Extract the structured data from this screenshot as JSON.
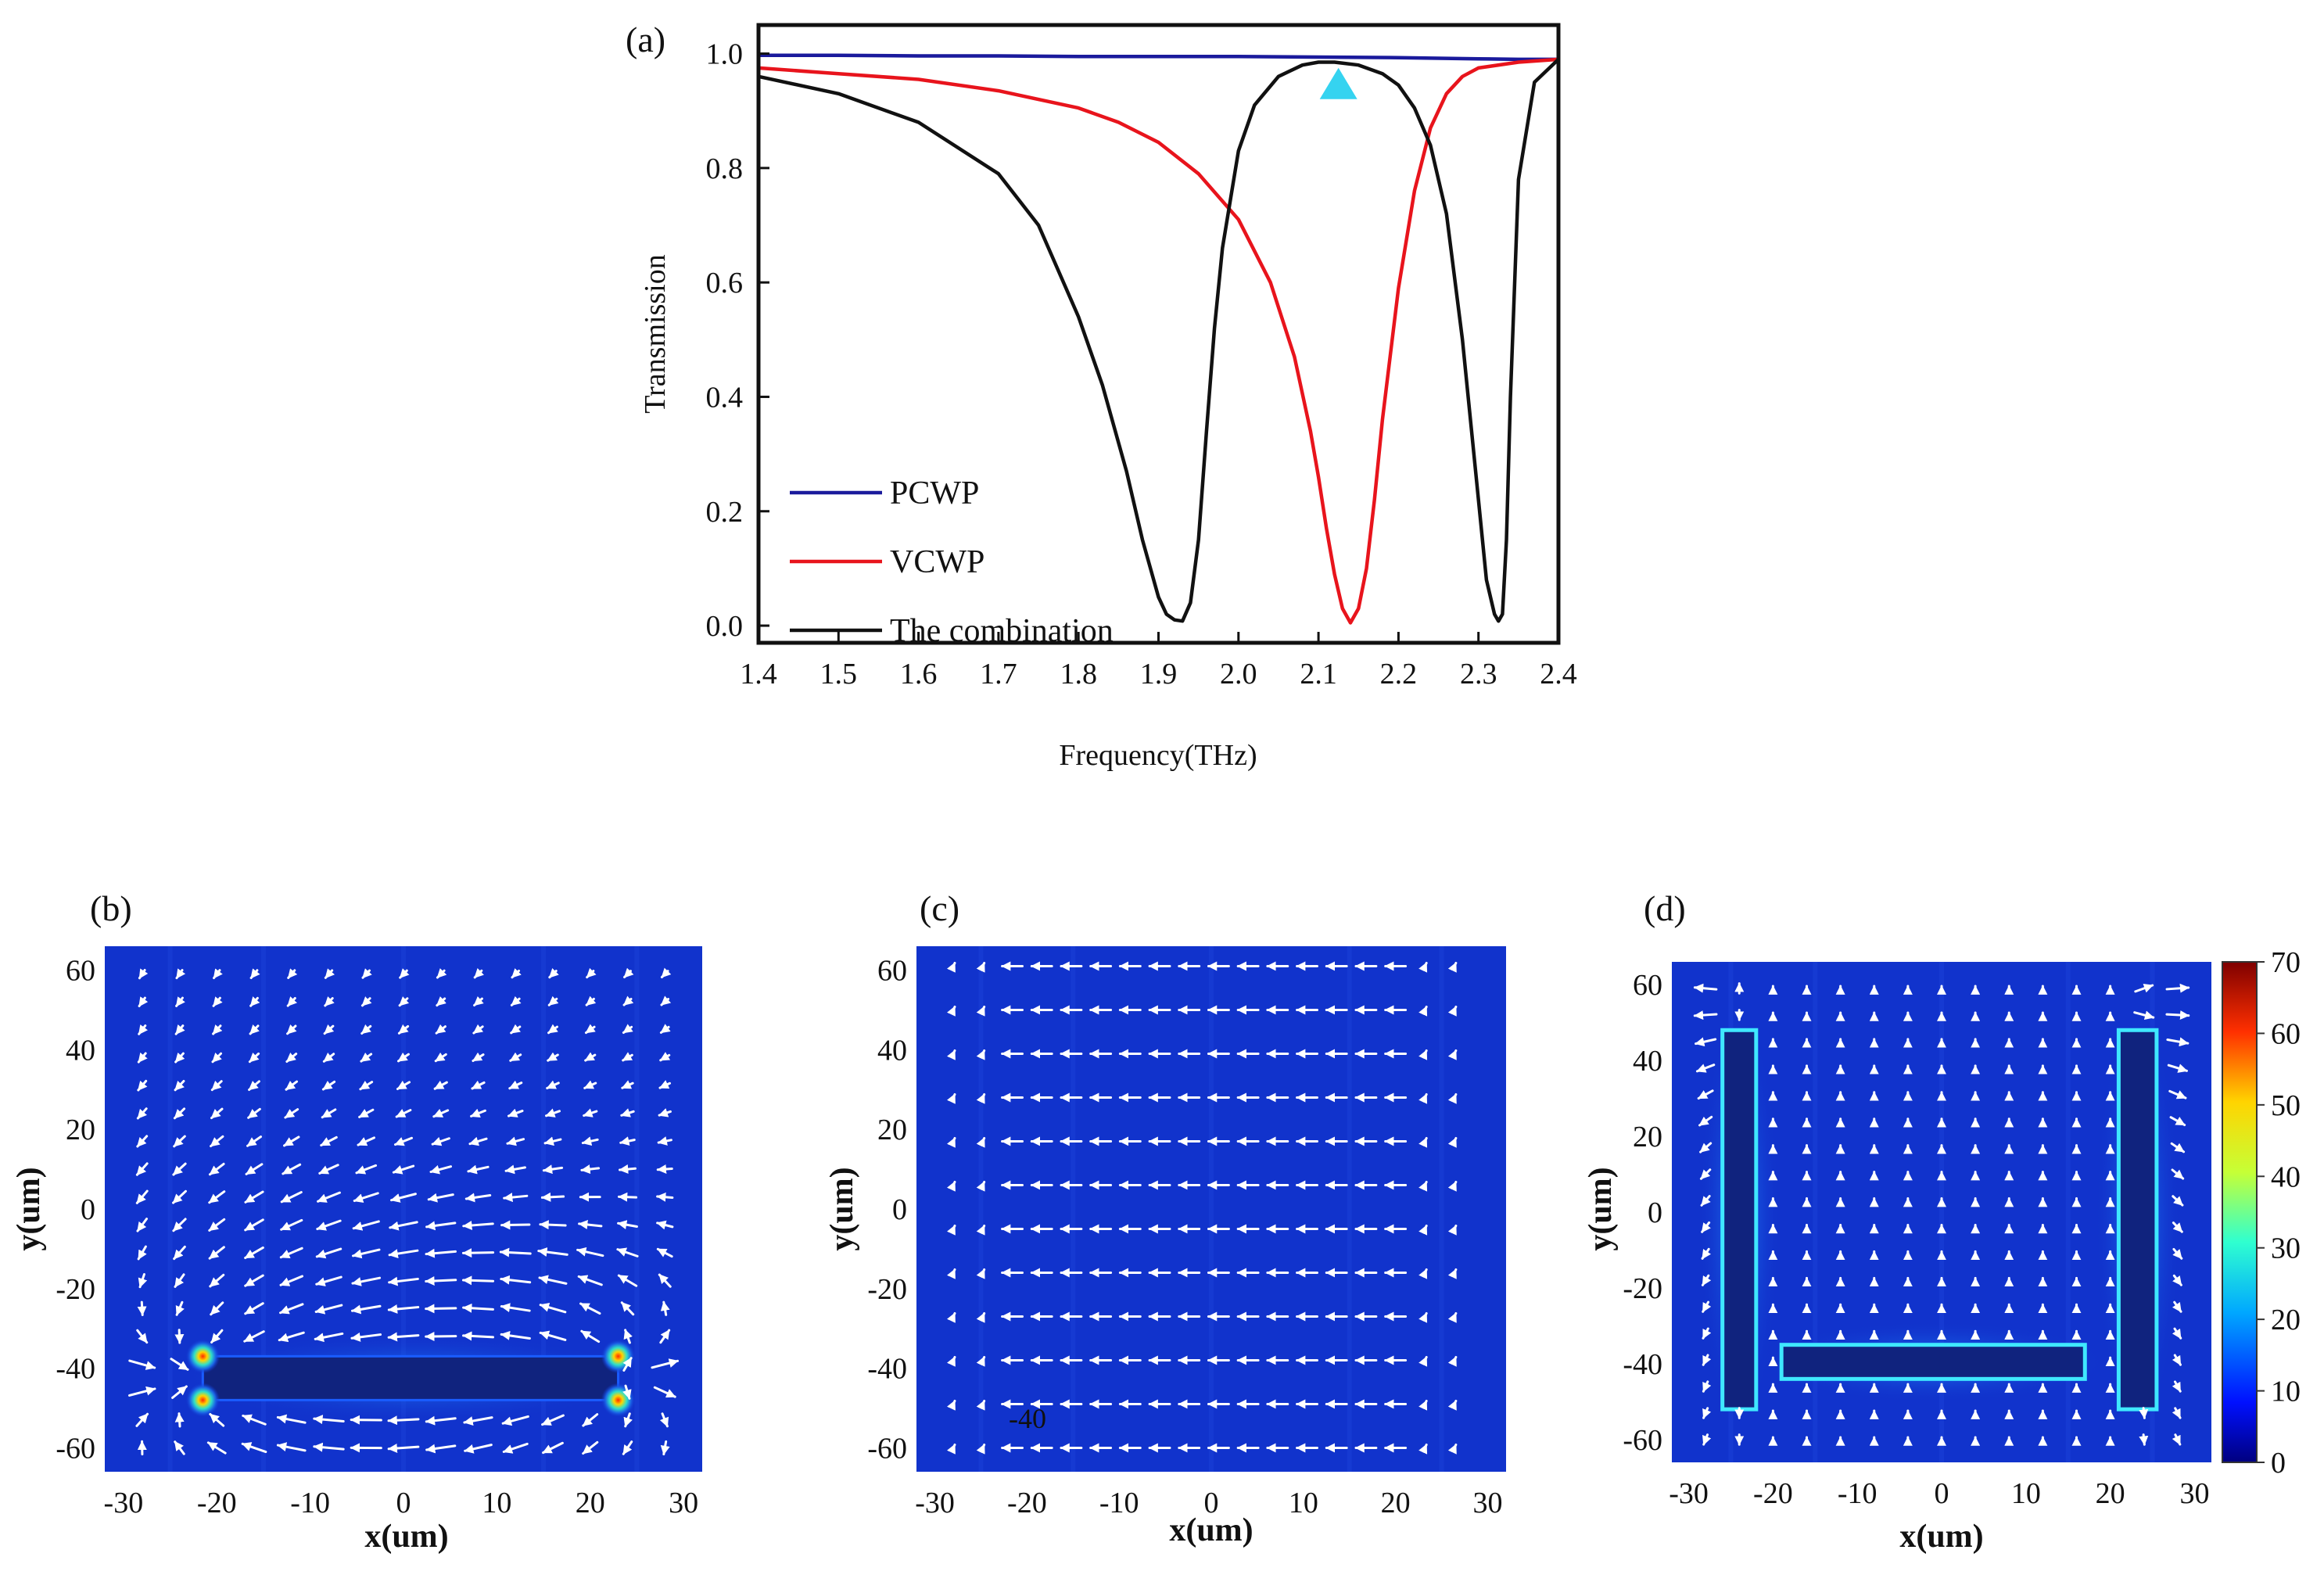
{
  "panels": {
    "a": "(a)",
    "b": "(b)",
    "c": "(c)",
    "d": "(d)"
  },
  "chart_data": [
    {
      "type": "line",
      "panel": "(a)",
      "xlabel": "Frequency(THz)",
      "ylabel": "Transmission",
      "xlim": [
        1.4,
        2.4
      ],
      "ylim": [
        -0.03,
        1.05
      ],
      "xticks": [
        "1.4",
        "1.5",
        "1.6",
        "1.7",
        "1.8",
        "1.9",
        "2.0",
        "2.1",
        "2.2",
        "2.3",
        "2.4"
      ],
      "yticks": [
        "0.0",
        "0.2",
        "0.4",
        "0.6",
        "0.8",
        "1.0"
      ],
      "legend_position": "bottom-left",
      "marker": {
        "shape": "triangle",
        "x": 2.125,
        "y": 0.945,
        "color": "#35d3f0"
      },
      "series": [
        {
          "name": "PCWP",
          "color": "#1a1a9c",
          "x": [
            1.4,
            1.5,
            1.6,
            1.7,
            1.8,
            1.9,
            2.0,
            2.1,
            2.2,
            2.3,
            2.35,
            2.4
          ],
          "y": [
            0.997,
            0.997,
            0.996,
            0.996,
            0.995,
            0.995,
            0.995,
            0.994,
            0.993,
            0.991,
            0.99,
            0.99
          ]
        },
        {
          "name": "VCWP",
          "color": "#e8141c",
          "x": [
            1.4,
            1.5,
            1.6,
            1.7,
            1.8,
            1.85,
            1.9,
            1.95,
            2.0,
            2.04,
            2.07,
            2.09,
            2.1,
            2.11,
            2.12,
            2.13,
            2.14,
            2.15,
            2.16,
            2.17,
            2.18,
            2.2,
            2.22,
            2.24,
            2.26,
            2.28,
            2.3,
            2.35,
            2.4
          ],
          "y": [
            0.975,
            0.965,
            0.955,
            0.935,
            0.905,
            0.88,
            0.845,
            0.79,
            0.71,
            0.6,
            0.47,
            0.34,
            0.26,
            0.17,
            0.09,
            0.03,
            0.005,
            0.03,
            0.1,
            0.22,
            0.36,
            0.59,
            0.76,
            0.87,
            0.93,
            0.96,
            0.975,
            0.985,
            0.99
          ]
        },
        {
          "name": "The combination",
          "color": "#111111",
          "x": [
            1.4,
            1.5,
            1.6,
            1.7,
            1.75,
            1.8,
            1.83,
            1.86,
            1.88,
            1.9,
            1.91,
            1.92,
            1.93,
            1.94,
            1.95,
            1.96,
            1.97,
            1.98,
            2.0,
            2.02,
            2.05,
            2.08,
            2.1,
            2.12,
            2.15,
            2.18,
            2.2,
            2.22,
            2.24,
            2.26,
            2.28,
            2.3,
            2.31,
            2.32,
            2.325,
            2.33,
            2.335,
            2.34,
            2.35,
            2.37,
            2.4
          ],
          "y": [
            0.96,
            0.93,
            0.88,
            0.79,
            0.7,
            0.54,
            0.42,
            0.27,
            0.15,
            0.05,
            0.02,
            0.01,
            0.008,
            0.04,
            0.15,
            0.34,
            0.52,
            0.66,
            0.83,
            0.91,
            0.96,
            0.98,
            0.985,
            0.985,
            0.98,
            0.965,
            0.945,
            0.905,
            0.84,
            0.72,
            0.5,
            0.22,
            0.08,
            0.02,
            0.008,
            0.02,
            0.15,
            0.4,
            0.78,
            0.95,
            0.99
          ]
        }
      ]
    },
    {
      "type": "heatmap",
      "panel": "(b)",
      "xlabel": "x(um)",
      "ylabel": "y(um)",
      "xlim": [
        -32,
        32
      ],
      "ylim": [
        -66,
        66
      ],
      "xticks": [
        "-30",
        "-20",
        "-10",
        "0",
        "10",
        "20",
        "30"
      ],
      "yticks": [
        "-60",
        "-40",
        "-20",
        "0",
        "20",
        "40",
        "60"
      ],
      "structures": [
        {
          "x": [
            -21.5,
            23
          ],
          "y": [
            -48,
            -37
          ]
        }
      ]
    },
    {
      "type": "heatmap",
      "panel": "(c)",
      "xlabel": "x(um)",
      "ylabel": "y(um)",
      "xlim": [
        -32,
        32
      ],
      "ylim": [
        -66,
        66
      ],
      "xticks": [
        "-30",
        "-20",
        "-10",
        "0",
        "10",
        "20",
        "30"
      ],
      "yticks": [
        "-60",
        "-40",
        "-20",
        "0",
        "20",
        "40",
        "60"
      ],
      "annotation": "-40",
      "structures": []
    },
    {
      "type": "heatmap",
      "panel": "(d)",
      "xlabel": "x(um)",
      "ylabel": "y(um)",
      "xlim": [
        -32,
        32
      ],
      "ylim": [
        -66,
        66
      ],
      "xticks": [
        "-30",
        "-20",
        "-10",
        "0",
        "10",
        "20",
        "30"
      ],
      "yticks": [
        "-60",
        "-40",
        "-20",
        "0",
        "20",
        "40",
        "60"
      ],
      "colorbar": {
        "min": 0,
        "max": 70,
        "ticks": [
          "0",
          "10",
          "20",
          "30",
          "40",
          "50",
          "60",
          "70"
        ]
      },
      "structures": [
        {
          "x": [
            -26,
            -22
          ],
          "y": [
            -52,
            48
          ]
        },
        {
          "x": [
            21,
            25.5
          ],
          "y": [
            -52,
            48
          ]
        },
        {
          "x": [
            -19,
            17
          ],
          "y": [
            -44,
            -35
          ]
        }
      ]
    }
  ]
}
